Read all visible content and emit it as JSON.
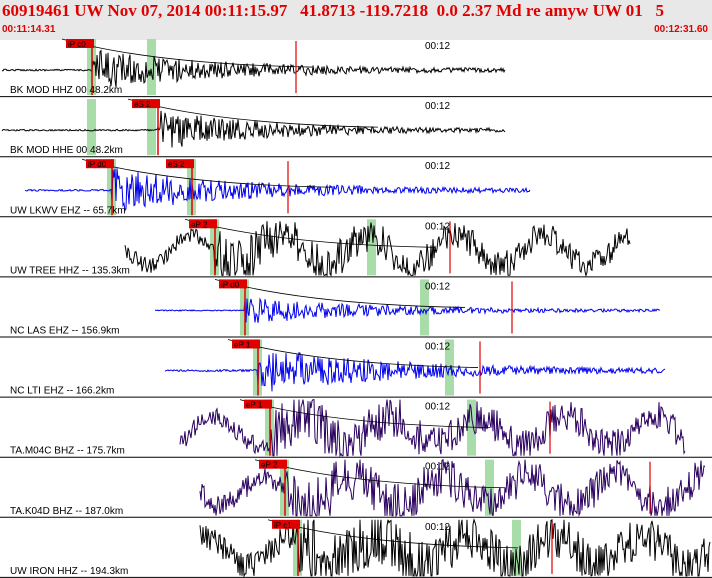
{
  "header": {
    "event_line": "60919461 UW Nov 07, 2014 00:11:15.97   41.8713 -119.7218  0.0 2.37 Md re amyw UW 01   5",
    "time_start": "00:11:14.31",
    "time_end": "00:12:31.60"
  },
  "colors": {
    "header_bg": "#e8e8e8",
    "header_text": "#e00000",
    "pick_red": "#e00000",
    "window_green": "#a8dca8",
    "trace_black": "#000000",
    "trace_blue": "#0000ee",
    "trace_purple": "#2a0060"
  },
  "traces": [
    {
      "label": "BK MOD HHZ 00 48.2km",
      "time_mark": "00:12",
      "color": "black",
      "picks": [
        "iP c0"
      ],
      "onset": 0.2,
      "amp": 0.75,
      "noise": 0.03
    },
    {
      "label": "BK MOD HHE 00 48.2km",
      "time_mark": "00:12",
      "color": "black",
      "picks": [
        "eS 2"
      ],
      "onset": 0.25,
      "amp": 0.75,
      "noise": 0.03
    },
    {
      "label": "UW LKWV EHZ -- 65.7km",
      "time_mark": "00:12",
      "color": "blue",
      "picks": [
        "iP d0",
        "eS 2"
      ],
      "onset": 0.22,
      "amp": 0.8,
      "noise": 0.03
    },
    {
      "label": "UW TREE HHZ -- 135.3km",
      "time_mark": "00:12",
      "color": "black",
      "picks": [
        "eP 2"
      ],
      "onset": 0.31,
      "amp": 0.6,
      "noise": 0.3
    },
    {
      "label": "NC LAS EHZ -- 156.9km",
      "time_mark": "00:12",
      "color": "blue",
      "picks": [
        "iP d0"
      ],
      "onset": 0.34,
      "amp": 0.5,
      "noise": 0.02
    },
    {
      "label": "NC LTI EHZ -- 166.2km",
      "time_mark": "00:12",
      "color": "blue",
      "picks": [
        "eP 1"
      ],
      "onset": 0.37,
      "amp": 0.85,
      "noise": 0.04
    },
    {
      "label": "TA.M04C BHZ -- 175.7km",
      "time_mark": "00:12",
      "color": "purple",
      "picks": [
        "eP 1"
      ],
      "onset": 0.39,
      "amp": 0.6,
      "noise": 0.35
    },
    {
      "label": "TA.K04D BHZ -- 187.0km",
      "time_mark": "00:12",
      "color": "purple",
      "picks": [
        "eP 2"
      ],
      "onset": 0.41,
      "amp": 0.5,
      "noise": 0.4
    },
    {
      "label": "UW IRON HHZ -- 194.3km",
      "time_mark": "00:12",
      "color": "black",
      "picks": [
        "iP c1"
      ],
      "onset": 0.41,
      "amp": 0.6,
      "noise": 0.5
    }
  ]
}
